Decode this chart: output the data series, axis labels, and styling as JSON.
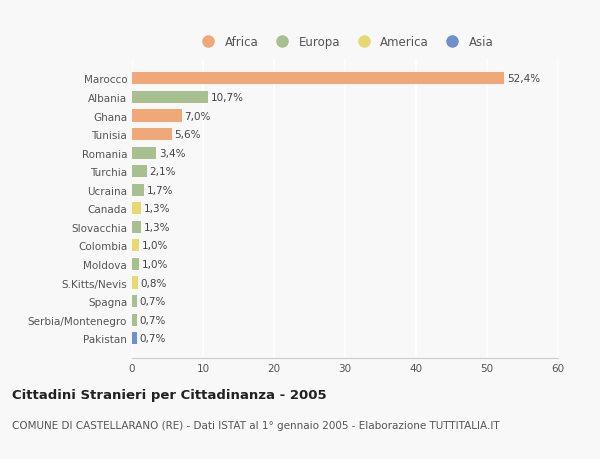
{
  "countries": [
    "Marocco",
    "Albania",
    "Ghana",
    "Tunisia",
    "Romania",
    "Turchia",
    "Ucraina",
    "Canada",
    "Slovacchia",
    "Colombia",
    "Moldova",
    "S.Kitts/Nevis",
    "Spagna",
    "Serbia/Montenegro",
    "Pakistan"
  ],
  "values": [
    52.4,
    10.7,
    7.0,
    5.6,
    3.4,
    2.1,
    1.7,
    1.3,
    1.3,
    1.0,
    1.0,
    0.8,
    0.7,
    0.7,
    0.7
  ],
  "labels": [
    "52,4%",
    "10,7%",
    "7,0%",
    "5,6%",
    "3,4%",
    "2,1%",
    "1,7%",
    "1,3%",
    "1,3%",
    "1,0%",
    "1,0%",
    "0,8%",
    "0,7%",
    "0,7%",
    "0,7%"
  ],
  "continents": [
    "Africa",
    "Europa",
    "Africa",
    "Africa",
    "Europa",
    "Europa",
    "Europa",
    "America",
    "Europa",
    "America",
    "Europa",
    "America",
    "Europa",
    "Europa",
    "Asia"
  ],
  "continent_colors": {
    "Africa": "#F0A878",
    "Europa": "#A8C090",
    "America": "#E8D870",
    "Asia": "#7090C8"
  },
  "legend_entries": [
    "Africa",
    "Europa",
    "America",
    "Asia"
  ],
  "legend_colors": [
    "#F0A878",
    "#A8C090",
    "#E8D870",
    "#7090C8"
  ],
  "xlim": [
    0,
    60
  ],
  "xticks": [
    0,
    10,
    20,
    30,
    40,
    50,
    60
  ],
  "title": "Cittadini Stranieri per Cittadinanza - 2005",
  "subtitle": "COMUNE DI CASTELLARANO (RE) - Dati ISTAT al 1° gennaio 2005 - Elaborazione TUTTITALIA.IT",
  "background_color": "#f8f8f8",
  "bar_height": 0.65,
  "title_fontsize": 9.5,
  "subtitle_fontsize": 7.5,
  "label_fontsize": 7.5,
  "tick_fontsize": 7.5,
  "legend_fontsize": 8.5
}
